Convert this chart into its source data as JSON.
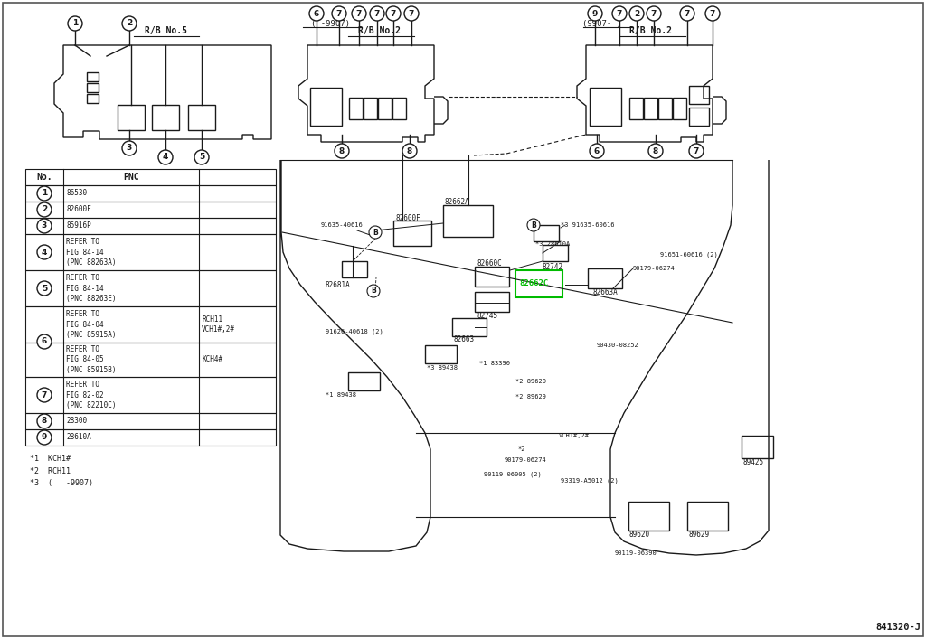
{
  "bg_color": "#ffffff",
  "line_color": "#1a1a1a",
  "highlight_color": "#00bb00",
  "rb5_label": "R/B No.5",
  "rb2_label": "R/B No.2",
  "period_left": "( -9907)",
  "period_right": "(9907- )",
  "diagram_code": "841320-J",
  "table_rows": [
    {
      "num": "1",
      "pnc": "86530",
      "extra": ""
    },
    {
      "num": "2",
      "pnc": "82600F",
      "extra": ""
    },
    {
      "num": "3",
      "pnc": "85916P",
      "extra": ""
    },
    {
      "num": "4",
      "pnc": "REFER TO\nFIG 84-14\n(PNC 88263A)",
      "extra": ""
    },
    {
      "num": "5",
      "pnc": "REFER TO\nFIG 84-14\n(PNC 88263E)",
      "extra": ""
    },
    {
      "num": "6",
      "pnc": "REFER TO\nFIG 84-04\n(PNC 85915A)",
      "extra": "RCH11\nVCH1#,2#"
    },
    {
      "num": "6",
      "pnc": "REFER TO\nFIG 84-05\n(PNC 85915B)",
      "extra": "KCH4#"
    },
    {
      "num": "7",
      "pnc": "REFER TO\nFIG 82-02\n(PNC 82210C)",
      "extra": ""
    },
    {
      "num": "8",
      "pnc": "28300",
      "extra": ""
    },
    {
      "num": "9",
      "pnc": "28610A",
      "extra": ""
    }
  ],
  "notes": [
    "*1  KCH1#",
    "*2  RCH11",
    "*3  (   -9907)"
  ]
}
